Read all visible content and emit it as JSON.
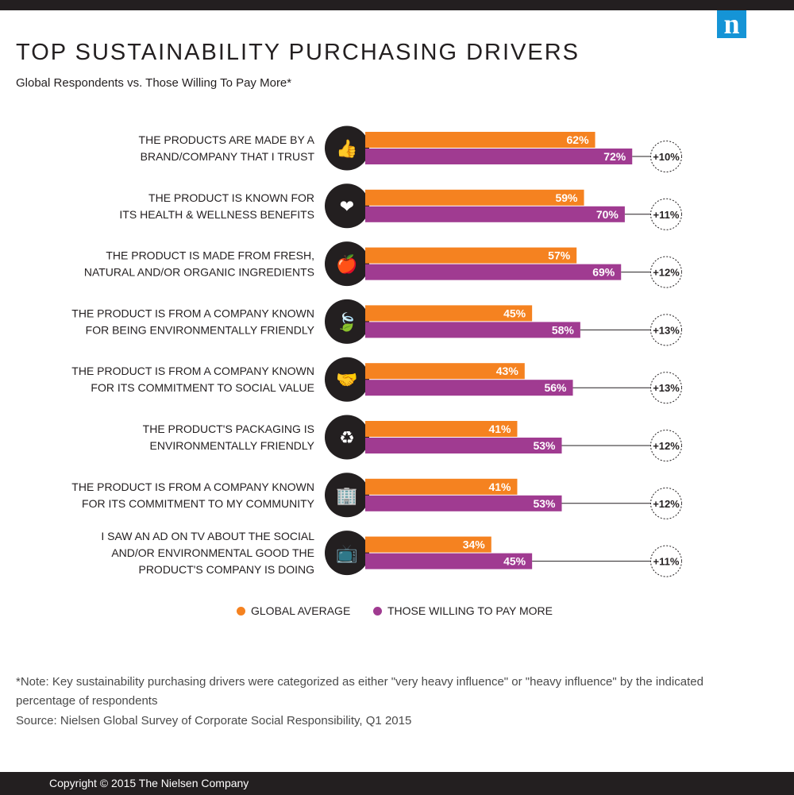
{
  "brand": {
    "logo_letter": "n",
    "accent": "#1594d6"
  },
  "header": {
    "title": "TOP SUSTAINABILITY PURCHASING DRIVERS",
    "subtitle": "Global Respondents vs. Those Willing To Pay More*"
  },
  "legend": {
    "global": "GLOBAL AVERAGE",
    "pay_more": "THOSE WILLING TO PAY MORE"
  },
  "colors": {
    "global": "#f58220",
    "pay_more": "#a03b91",
    "icon_bg": "#231f20"
  },
  "note": "*Note: Key sustainability purchasing drivers were categorized as either \"very heavy influence\" or \"heavy influence\" by the indicated percentage of respondents",
  "source": "Source: Nielsen Global Survey of Corporate Social Responsibility, Q1 2015",
  "footer": {
    "copyright": "Copyright © 2015 The Nielsen Company"
  },
  "chart_data": {
    "type": "bar",
    "orientation": "horizontal",
    "title": "TOP SUSTAINABILITY PURCHASING DRIVERS",
    "subtitle": "Global Respondents vs. Those Willing To Pay More*",
    "categories": [
      [
        "THE PRODUCTS ARE MADE BY A",
        "BRAND/COMPANY THAT I TRUST"
      ],
      [
        "THE PRODUCT IS KNOWN FOR",
        "ITS HEALTH & WELLNESS BENEFITS"
      ],
      [
        "THE PRODUCT IS MADE FROM FRESH,",
        "NATURAL AND/OR ORGANIC INGREDIENTS"
      ],
      [
        "THE PRODUCT IS FROM A COMPANY KNOWN",
        "FOR BEING ENVIRONMENTALLY FRIENDLY"
      ],
      [
        "THE PRODUCT IS FROM A COMPANY KNOWN",
        "FOR ITS COMMITMENT TO SOCIAL VALUE"
      ],
      [
        "THE PRODUCT'S PACKAGING IS",
        "ENVIRONMENTALLY FRIENDLY"
      ],
      [
        "THE PRODUCT IS FROM A COMPANY KNOWN",
        "FOR ITS COMMITMENT TO MY COMMUNITY"
      ],
      [
        "I SAW AN AD ON TV ABOUT THE SOCIAL",
        "AND/OR ENVIRONMENTAL GOOD THE",
        "PRODUCT'S COMPANY IS DOING"
      ]
    ],
    "icons": [
      "thumbs-up-icon",
      "heart-pulse-icon",
      "apple-icon",
      "leaf-icon",
      "handshake-icon",
      "recycle-packaging-icon",
      "buildings-icon",
      "tv-icon"
    ],
    "series": [
      {
        "name": "GLOBAL AVERAGE",
        "color": "#f58220",
        "values": [
          62,
          59,
          57,
          45,
          43,
          41,
          41,
          34
        ],
        "labels": [
          "62%",
          "59%",
          "57%",
          "45%",
          "43%",
          "41%",
          "41%",
          "34%"
        ]
      },
      {
        "name": "THOSE WILLING TO PAY MORE",
        "color": "#a03b91",
        "values": [
          72,
          70,
          69,
          58,
          56,
          53,
          53,
          45
        ],
        "labels": [
          "72%",
          "70%",
          "69%",
          "58%",
          "56%",
          "53%",
          "53%",
          "45%"
        ]
      }
    ],
    "differences": [
      "+10%",
      "+11%",
      "+12%",
      "+13%",
      "+13%",
      "+12%",
      "+12%",
      "+11%"
    ],
    "xlim": [
      0,
      100
    ],
    "grid": false,
    "legend_position": "bottom"
  }
}
